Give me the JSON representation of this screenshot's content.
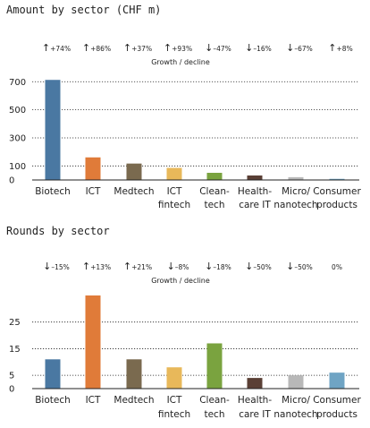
{
  "chart_data": [
    {
      "type": "bar",
      "title": "Amount by sector (CHF m)",
      "categories": [
        [
          "Biotech"
        ],
        [
          "ICT"
        ],
        [
          "Medtech"
        ],
        [
          "ICT",
          "fintech"
        ],
        [
          "Clean-",
          "tech"
        ],
        [
          "Health-",
          "care IT"
        ],
        [
          "Micro/",
          "nanotech"
        ],
        [
          "Consumer",
          "products"
        ]
      ],
      "values": [
        713,
        161,
        117,
        86,
        51,
        32,
        20,
        8
      ],
      "colors": [
        "#4a78a2",
        "#e07b39",
        "#7a6a4f",
        "#e8b85a",
        "#7aa33f",
        "#5a3f35",
        "#b8b8b8",
        "#6fa4c4"
      ],
      "growth_label": "Growth / decline",
      "growth": [
        {
          "arrow": "↑",
          "text": "+74%"
        },
        {
          "arrow": "↑",
          "text": "+86%"
        },
        {
          "arrow": "↑",
          "text": "+37%"
        },
        {
          "arrow": "↑",
          "text": "+93%"
        },
        {
          "arrow": "↓",
          "text": "–47%"
        },
        {
          "arrow": "↓",
          "text": "–16%"
        },
        {
          "arrow": "↓",
          "text": "–67%"
        },
        {
          "arrow": "↑",
          "text": "+8%"
        }
      ],
      "yticks": [
        0,
        100,
        300,
        500,
        700
      ],
      "ylim": [
        0,
        740
      ],
      "grid": "dotted horizontal",
      "xlabel": "",
      "ylabel": ""
    },
    {
      "type": "bar",
      "title": "Rounds by sector",
      "categories": [
        [
          "Biotech"
        ],
        [
          "ICT"
        ],
        [
          "Medtech"
        ],
        [
          "ICT",
          "fintech"
        ],
        [
          "Clean-",
          "tech"
        ],
        [
          "Health-",
          "care IT"
        ],
        [
          "Micro/",
          "nanotech"
        ],
        [
          "Consumer",
          "products"
        ]
      ],
      "values": [
        11,
        35,
        11,
        8,
        17,
        4,
        5,
        6
      ],
      "colors": [
        "#4a78a2",
        "#e07b39",
        "#7a6a4f",
        "#e8b85a",
        "#7aa33f",
        "#5a3f35",
        "#b8b8b8",
        "#6fa4c4"
      ],
      "growth_label": "Growth / decline",
      "growth": [
        {
          "arrow": "↓",
          "text": "–15%"
        },
        {
          "arrow": "↑",
          "text": "+13%"
        },
        {
          "arrow": "↑",
          "text": "+21%"
        },
        {
          "arrow": "↓",
          "text": "–8%"
        },
        {
          "arrow": "↓",
          "text": "–18%"
        },
        {
          "arrow": "↓",
          "text": "–50%"
        },
        {
          "arrow": "↓",
          "text": "–50%"
        },
        {
          "arrow": "",
          "text": "0%"
        }
      ],
      "yticks": [
        0,
        5,
        15,
        25
      ],
      "ylim": [
        0,
        36
      ],
      "grid": "dotted horizontal",
      "xlabel": "",
      "ylabel": ""
    }
  ]
}
